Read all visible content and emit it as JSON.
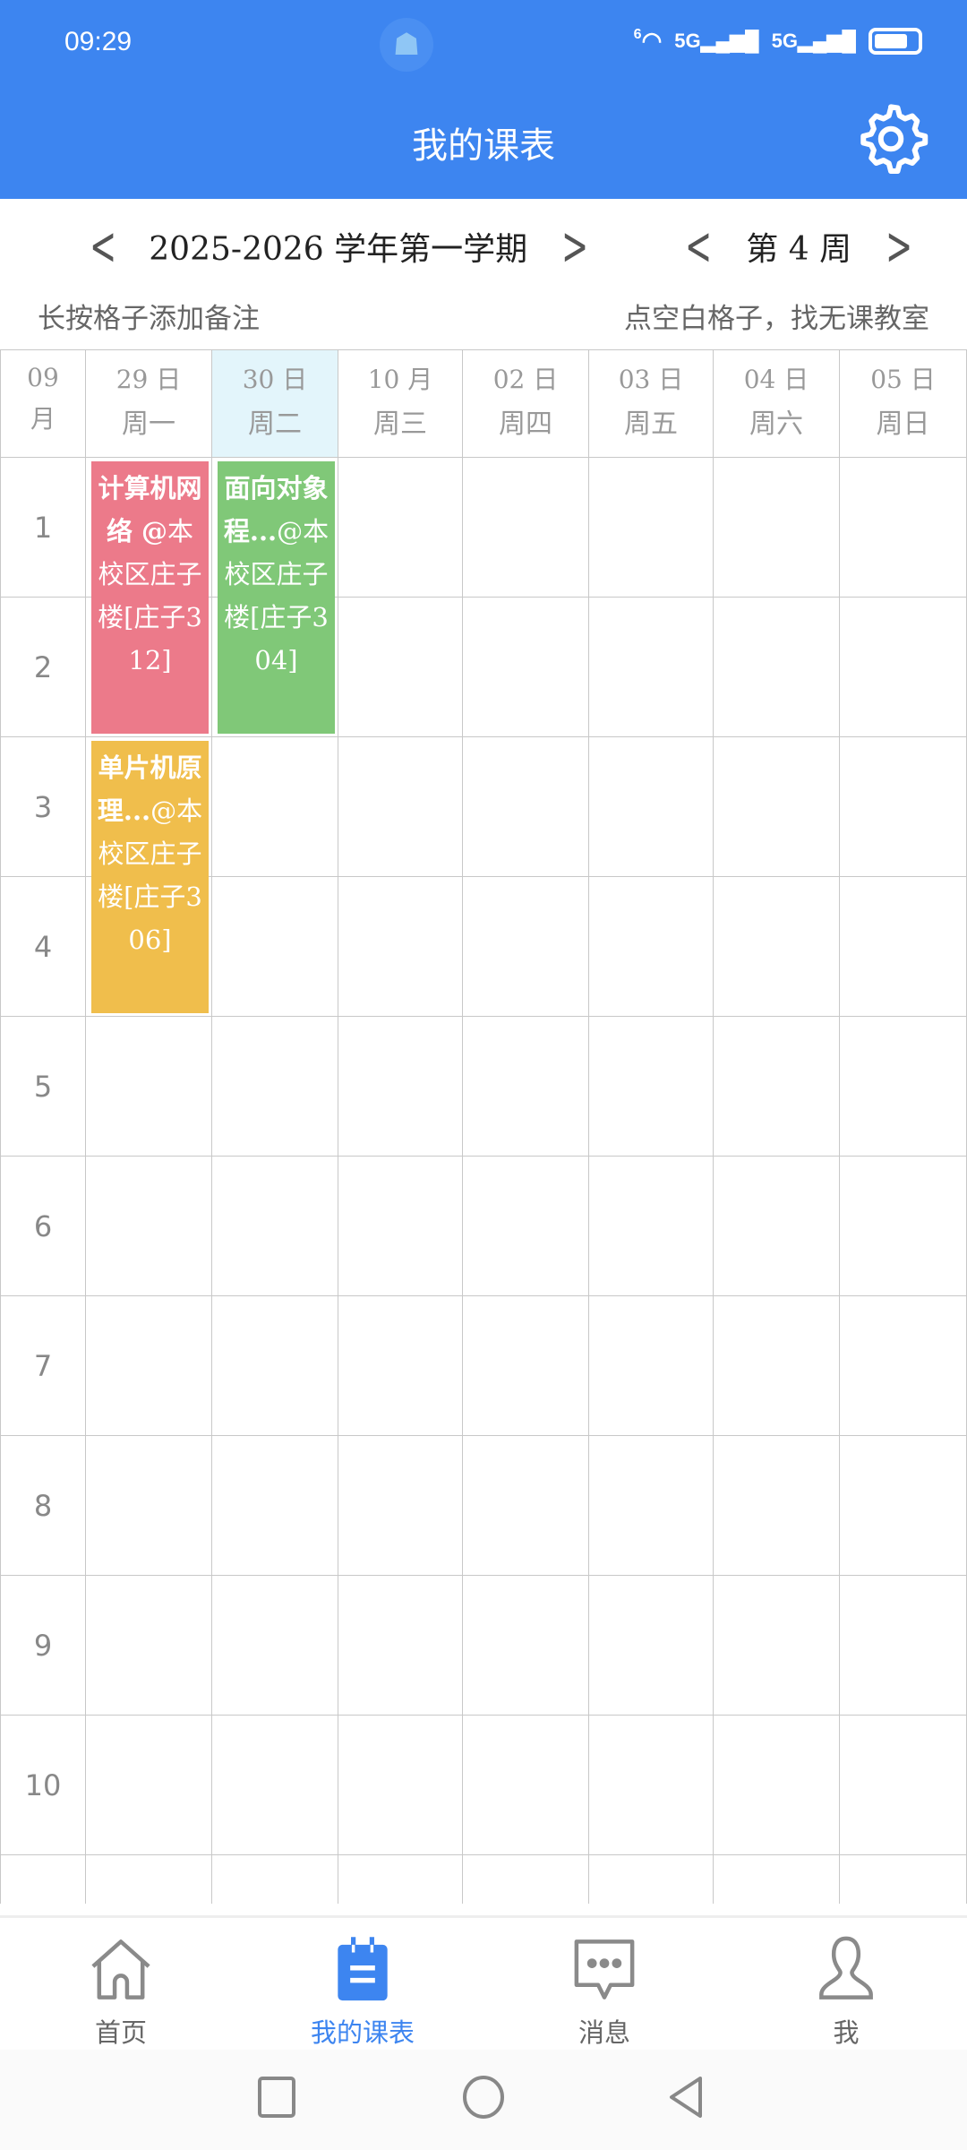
{
  "status_bar": {
    "time": "09:29",
    "network": [
      "5G",
      "5G"
    ],
    "wifi_label": "6"
  },
  "header": {
    "title": "我的课表",
    "settings_icon": "gear-icon"
  },
  "term": {
    "label": "2025-2026 学年第一学期"
  },
  "week": {
    "label": "第 4 周"
  },
  "hints": {
    "left": "长按格子添加备注",
    "right": "点空白格子，找无课教室"
  },
  "grid": {
    "month": "09\n月",
    "today_index": 1,
    "days": [
      {
        "date": "29 日",
        "weekday": "周一"
      },
      {
        "date": "30 日",
        "weekday": "周二"
      },
      {
        "date": "10 月",
        "weekday": "周三"
      },
      {
        "date": "02 日",
        "weekday": "周四"
      },
      {
        "date": "03 日",
        "weekday": "周五"
      },
      {
        "date": "04 日",
        "weekday": "周六"
      },
      {
        "date": "05 日",
        "weekday": "周日"
      }
    ],
    "periods": [
      "1",
      "2",
      "3",
      "4",
      "5",
      "6",
      "7",
      "8",
      "9",
      "10",
      ""
    ]
  },
  "courses": [
    {
      "name": "计算机网络 @",
      "location": "本校区庄子楼[庄子312]",
      "day": 0,
      "start": 1,
      "end": 2,
      "color": "#ec7a8a"
    },
    {
      "name": "面向对象程...",
      "location": "@本校区庄子楼[庄子304]",
      "day": 1,
      "start": 1,
      "end": 2,
      "color": "#80c878"
    },
    {
      "name": "单片机原理...",
      "location": "@本校区庄子楼[庄子306]",
      "day": 0,
      "start": 3,
      "end": 4,
      "color": "#f0be4c"
    }
  ],
  "bottom_nav": [
    {
      "label": "首页",
      "icon": "home-icon"
    },
    {
      "label": "我的课表",
      "icon": "calendar-icon",
      "active": true
    },
    {
      "label": "消息",
      "icon": "message-icon"
    },
    {
      "label": "我",
      "icon": "person-icon"
    }
  ],
  "colors": {
    "primary": "#3d85f0",
    "today_bg": "#e3f5fb"
  }
}
